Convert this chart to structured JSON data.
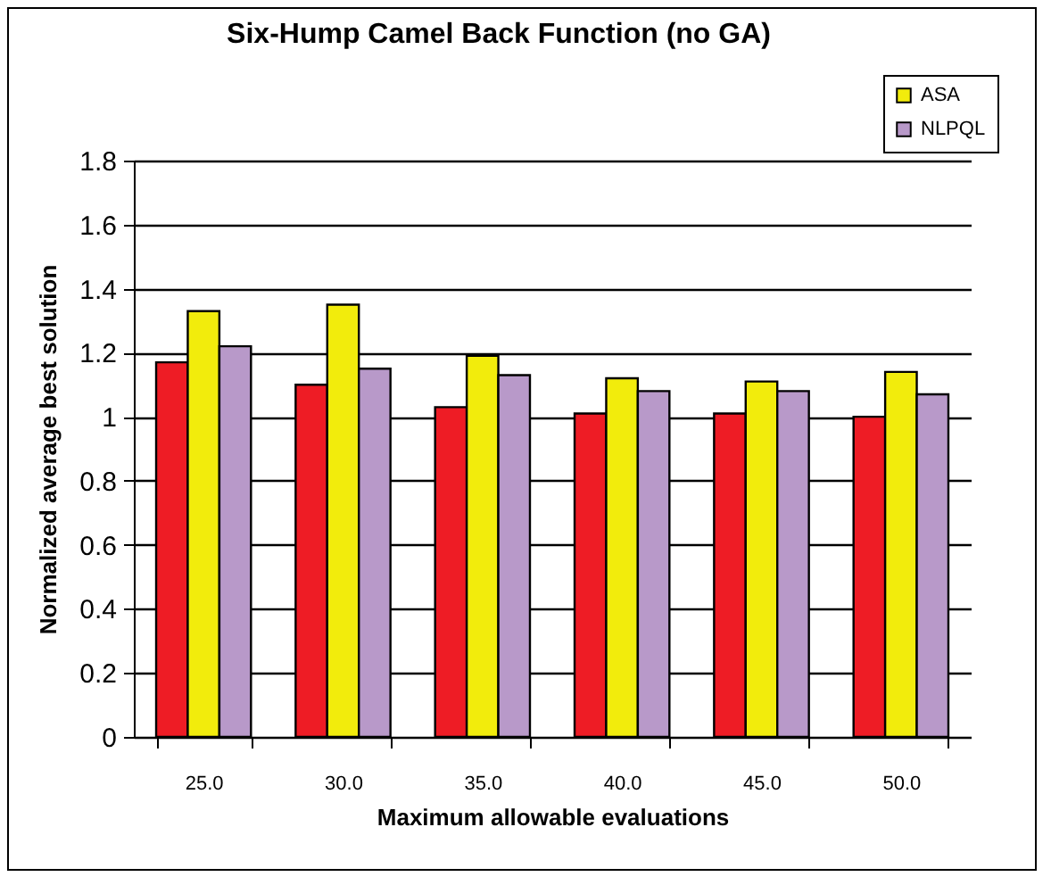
{
  "chart_data": {
    "type": "bar",
    "title": "Six-Hump Camel Back Function (no GA)",
    "xlabel": "Maximum allowable evaluations",
    "ylabel": "Normalized average best solution",
    "categories": [
      "25.0",
      "30.0",
      "35.0",
      "40.0",
      "45.0",
      "50.0"
    ],
    "series": [
      {
        "color": "#ee1c25",
        "values": [
          1.17,
          1.1,
          1.03,
          1.01,
          1.01,
          1.0
        ]
      },
      {
        "name": "ASA",
        "color": "#f2ec0c",
        "values": [
          1.33,
          1.35,
          1.19,
          1.12,
          1.11,
          1.14
        ]
      },
      {
        "name": "NLPQL",
        "color": "#b899c9",
        "values": [
          1.22,
          1.15,
          1.13,
          1.08,
          1.08,
          1.07
        ]
      }
    ],
    "ylim": [
      0,
      1.8
    ],
    "yticks": [
      0,
      0.2,
      0.4,
      0.6,
      0.8,
      1,
      1.2,
      1.4,
      1.6,
      1.8
    ],
    "grid": "y",
    "legend": "top right"
  }
}
